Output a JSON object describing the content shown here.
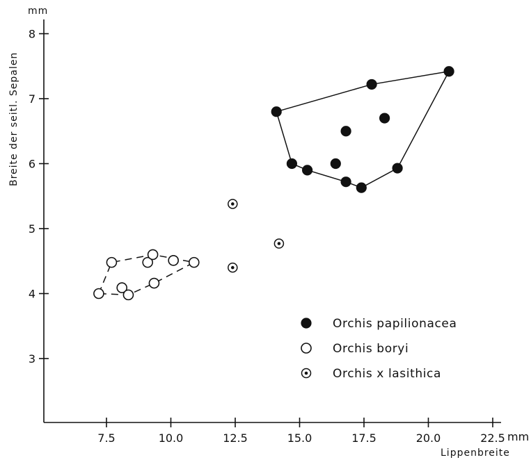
{
  "chart_data": {
    "type": "scatter",
    "title": "",
    "xlabel": "Lippenbreite",
    "ylabel": "Breite der seitl. Sepalen",
    "x_unit": "mm",
    "y_unit": "mm",
    "xlim": [
      5.0,
      23.0
    ],
    "ylim": [
      2.0,
      8.5
    ],
    "x_ticks": [
      7.5,
      10.0,
      12.5,
      15.0,
      17.5,
      20.0,
      22.5
    ],
    "x_tick_labels": [
      "7.5",
      "10.0",
      "12.5",
      "15.0",
      "17.5",
      "20.0",
      "22.5"
    ],
    "y_ticks": [
      3,
      4,
      5,
      6,
      7,
      8
    ],
    "y_tick_labels": [
      "3",
      "4",
      "5",
      "6",
      "7",
      "8"
    ],
    "grid": false,
    "legend_position": "lower-right",
    "series": [
      {
        "name": "Orchis papilionacea",
        "marker": "filled-circle",
        "color": "#111111",
        "x": [
          14.1,
          17.8,
          20.8,
          16.8,
          18.3,
          14.7,
          15.3,
          16.4,
          16.8,
          17.4,
          18.8
        ],
        "y": [
          6.8,
          7.22,
          7.42,
          6.5,
          6.7,
          6.0,
          5.9,
          6.0,
          5.72,
          5.63,
          5.93
        ],
        "hull": [
          [
            14.1,
            6.8
          ],
          [
            17.8,
            7.22
          ],
          [
            20.8,
            7.42
          ],
          [
            18.8,
            5.93
          ],
          [
            17.4,
            5.63
          ],
          [
            16.8,
            5.72
          ],
          [
            15.3,
            5.9
          ],
          [
            14.7,
            6.0
          ]
        ],
        "hull_style": "solid"
      },
      {
        "name": "Orchis boryi",
        "marker": "open-circle",
        "color": "#111111",
        "x": [
          7.2,
          7.7,
          8.1,
          8.35,
          9.1,
          9.3,
          9.35,
          10.1,
          10.9
        ],
        "y": [
          4.0,
          4.48,
          4.09,
          3.98,
          4.48,
          4.6,
          4.16,
          4.51,
          4.48
        ],
        "hull": [
          [
            7.2,
            4.0
          ],
          [
            7.7,
            4.48
          ],
          [
            9.3,
            4.6
          ],
          [
            10.9,
            4.48
          ],
          [
            9.35,
            4.16
          ],
          [
            8.35,
            3.98
          ]
        ],
        "hull_style": "dashed"
      },
      {
        "name": "Orchis x lasithica",
        "marker": "dotted-circle",
        "color": "#111111",
        "x": [
          12.4,
          12.4,
          14.2
        ],
        "y": [
          5.38,
          4.4,
          4.77
        ],
        "hull": [],
        "hull_style": "none"
      }
    ]
  }
}
